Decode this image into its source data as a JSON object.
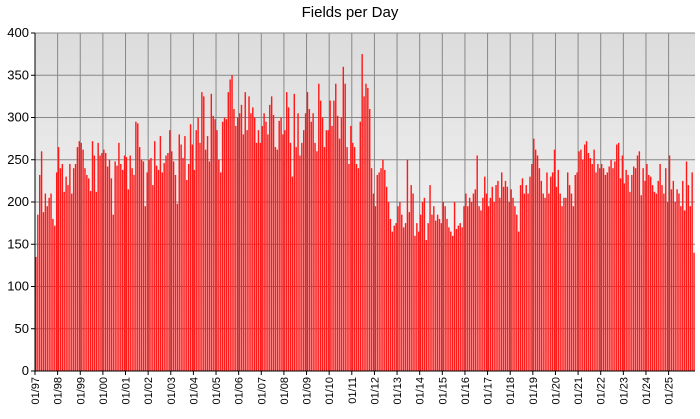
{
  "chart_data": {
    "type": "bar",
    "title": "Fields per Day",
    "xlabel": "",
    "ylabel": "",
    "ylim": [
      0,
      400
    ],
    "yticks": [
      0,
      50,
      100,
      150,
      200,
      250,
      300,
      350,
      400
    ],
    "xticks": [
      "01/97",
      "01/98",
      "01/99",
      "01/00",
      "01/01",
      "01/02",
      "01/03",
      "01/04",
      "01/05",
      "01/06",
      "01/07",
      "01/08",
      "01/09",
      "01/10",
      "01/11",
      "01/12",
      "01/13",
      "01/14",
      "01/15",
      "01/16",
      "01/17",
      "01/18",
      "01/19",
      "01/20",
      "01/21",
      "01/22",
      "01/23",
      "01/24",
      "01/25"
    ],
    "grid": true,
    "bar_color": "#ff1a1a",
    "background_gradient": [
      "#dcdcdc",
      "#ffffff"
    ],
    "start_month": "1997-01",
    "series": [
      {
        "values": [
          135,
          185,
          232,
          260,
          188,
          210,
          195,
          205,
          210,
          180,
          172,
          235,
          265,
          240,
          245,
          212,
          230,
          220,
          245,
          210,
          240,
          245,
          265,
          272,
          270,
          262,
          240,
          232,
          228,
          213,
          272,
          255,
          212,
          270,
          255,
          258,
          262,
          258,
          242,
          250,
          228,
          185,
          248,
          243,
          270,
          245,
          238,
          255,
          253,
          215,
          255,
          240,
          232,
          295,
          293,
          265,
          250,
          248,
          195,
          235,
          250,
          252,
          220,
          272,
          243,
          238,
          278,
          235,
          246,
          255,
          258,
          285,
          260,
          248,
          232,
          198,
          280,
          268,
          252,
          278,
          226,
          245,
          292,
          268,
          238,
          285,
          300,
          270,
          330,
          325,
          262,
          278,
          248,
          328,
          302,
          298,
          285,
          250,
          235,
          295,
          300,
          298,
          330,
          345,
          350,
          310,
          290,
          300,
          305,
          315,
          280,
          330,
          285,
          325,
          305,
          312,
          300,
          270,
          285,
          270,
          290,
          305,
          295,
          280,
          315,
          325,
          303,
          265,
          262,
          296,
          300,
          280,
          285,
          330,
          312,
          270,
          230,
          328,
          265,
          305,
          255,
          270,
          285,
          305,
          330,
          310,
          295,
          305,
          270,
          260,
          340,
          320,
          300,
          265,
          285,
          285,
          320,
          290,
          320,
          340,
          302,
          275,
          300,
          360,
          340,
          265,
          245,
          290,
          270,
          265,
          245,
          240,
          295,
          375,
          325,
          340,
          335,
          310,
          240,
          210,
          195,
          232,
          235,
          240,
          250,
          238,
          218,
          200,
          180,
          165,
          172,
          175,
          195,
          200,
          185,
          170,
          175,
          250,
          188,
          220,
          210,
          160,
          175,
          165,
          185,
          200,
          205,
          155,
          175,
          220,
          185,
          195,
          178,
          185,
          180,
          175,
          200,
          195,
          180,
          170,
          165,
          160,
          200,
          168,
          172,
          175,
          170,
          195,
          210,
          195,
          205,
          200,
          210,
          215,
          255,
          195,
          190,
          205,
          230,
          210,
          195,
          205,
          218,
          200,
          220,
          225,
          205,
          235,
          218,
          225,
          218,
          200,
          215,
          205,
          195,
          185,
          165,
          220,
          228,
          210,
          220,
          210,
          230,
          245,
          275,
          262,
          255,
          240,
          225,
          210,
          205,
          235,
          210,
          230,
          235,
          262,
          218,
          238,
          210,
          195,
          205,
          205,
          235,
          220,
          210,
          195,
          232,
          235,
          260,
          262,
          250,
          268,
          272,
          258,
          252,
          245,
          262,
          235,
          245,
          240,
          245,
          240,
          232,
          235,
          242,
          250,
          240,
          248,
          268,
          270,
          228,
          255,
          222,
          238,
          232,
          212,
          232,
          242,
          240,
          255,
          260,
          208,
          240,
          225,
          245,
          232,
          230,
          220,
          212,
          210,
          225,
          245,
          220,
          210,
          240,
          200,
          255,
          215,
          225,
          200,
          215,
          210,
          195,
          225,
          190,
          248,
          220,
          195,
          235,
          140
        ]
      }
    ]
  }
}
